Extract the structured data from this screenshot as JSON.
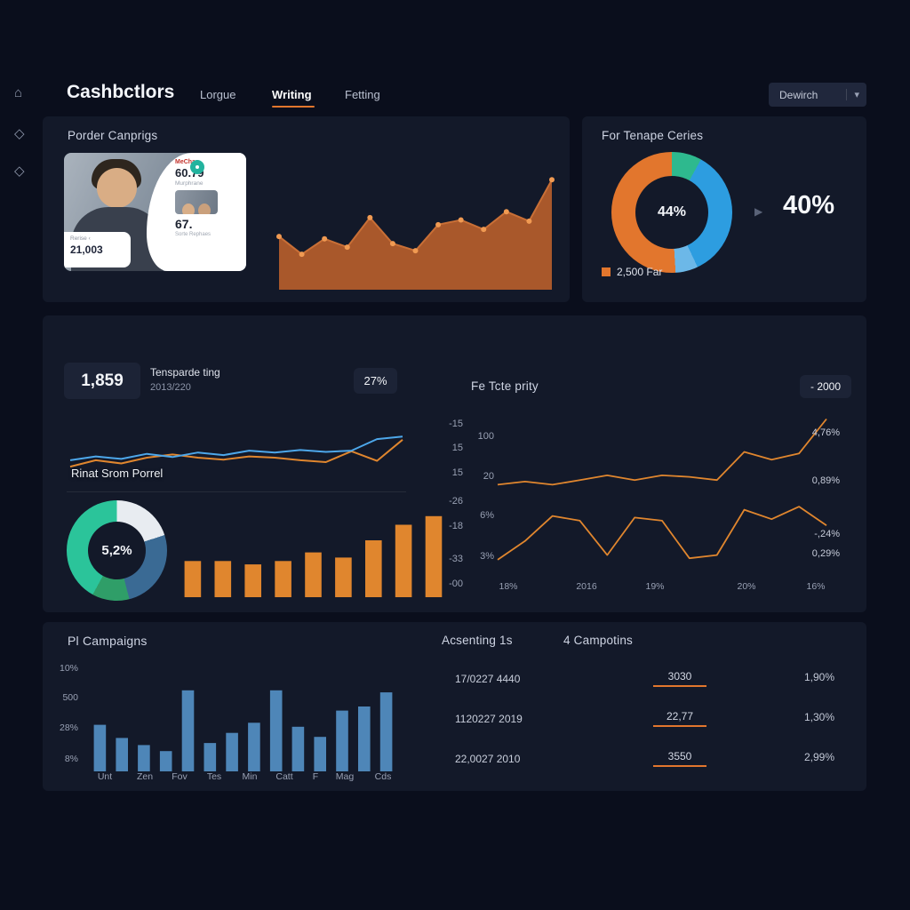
{
  "brand": "Cashbctlors",
  "nav": {
    "items": [
      {
        "label": "Lorgue",
        "active": false
      },
      {
        "label": "Writing",
        "active": true
      },
      {
        "label": "Fetting",
        "active": false
      }
    ],
    "dropdown_label": "Dewirch"
  },
  "cards": {
    "campaigns": {
      "title": "Porder Canprigs",
      "photo": {
        "logo": "MeChas",
        "value": "60.79",
        "sub": "Murphrane",
        "num": "67.",
        "caption": "Sorte Rephaes",
        "side_label": "Rerise ‹",
        "side_value": "21,003"
      }
    },
    "tenape": {
      "title": "For Tenape Ceries",
      "center_value": "44%",
      "big_value": "40%",
      "legend": "2,500 Far"
    },
    "mid": {
      "stat": "1,859",
      "stat_label1": "Tensparde ting",
      "stat_label2": "2013/220",
      "badge": "27%",
      "overlay_label": "Rinat Srom Porrel",
      "donut_center": "5,2%",
      "axis_labels": [
        "-15",
        "15",
        "15",
        "-26",
        "-18",
        "-33",
        "-00"
      ]
    },
    "right": {
      "title": "Fe Tcte prity",
      "badge": "- 2000",
      "y_labels": [
        "100",
        "20",
        "6%",
        "3%"
      ],
      "x_labels": [
        "18%",
        "2016",
        "19%",
        "20%",
        "16%"
      ],
      "side_values": [
        "4,76%",
        "0,89%",
        "-,24%",
        "0,29%"
      ]
    },
    "bottom": {
      "left_title": "Pl Campaigns",
      "y_labels": [
        "10%",
        "500",
        "28%",
        "8%"
      ],
      "x_labels": [
        "Unt",
        "Zen",
        "Fov",
        "Tes",
        "Min",
        "Catt",
        "F",
        "Mag",
        "Cds"
      ],
      "mid_title": "Acsenting 1s",
      "mid_rows": [
        "17/0227 4440",
        "1120227 2019",
        "22,0027 2010"
      ],
      "right_title": "4 Campotins",
      "camp_rows": [
        {
          "num": "3030",
          "pct": "1,90%"
        },
        {
          "num": "22,77",
          "pct": "1,30%"
        },
        {
          "num": "3550",
          "pct": "2,99%"
        }
      ]
    }
  },
  "chart_data": {
    "area": {
      "type": "area",
      "values": [
        42,
        27,
        40,
        33,
        58,
        36,
        30,
        52,
        56,
        48,
        63,
        55,
        90
      ],
      "fill": "#a9582b",
      "line": "#c96f36",
      "dot": "#f09a52"
    },
    "donut_tenape": {
      "type": "pie",
      "segments": [
        {
          "color": "#2eb98e",
          "value": 8
        },
        {
          "color": "#2d9de0",
          "value": 35
        },
        {
          "color": "#6cb8e8",
          "value": 6
        },
        {
          "color": "#e2762d",
          "value": 51
        }
      ]
    },
    "mid_lines": {
      "type": "line",
      "blue": [
        46,
        52,
        48,
        56,
        51,
        58,
        54,
        61,
        58,
        62,
        59,
        61,
        79,
        83
      ],
      "orange": [
        36,
        46,
        41,
        50,
        55,
        50,
        47,
        52,
        50,
        46,
        43,
        60,
        45,
        78
      ],
      "blue_color": "#4da7ea",
      "orange_color": "#e0862e"
    },
    "donut_small": {
      "type": "pie",
      "segments": [
        {
          "color": "#e8ecf1",
          "value": 20
        },
        {
          "color": "#3a6a94",
          "value": 26
        },
        {
          "color": "#2f9e68",
          "value": 12
        },
        {
          "color": "#2bc49a",
          "value": 42
        }
      ]
    },
    "mid_bars": {
      "type": "bar",
      "values": [
        42,
        42,
        38,
        42,
        52,
        46,
        66,
        84,
        94
      ],
      "color": "#e0862e"
    },
    "right_lines": {
      "type": "line",
      "top": [
        56,
        58,
        56,
        59,
        62,
        59,
        62,
        61,
        59,
        77,
        72,
        76,
        98
      ],
      "bottom": [
        8,
        20,
        36,
        33,
        11,
        35,
        33,
        9,
        11,
        40,
        34,
        42,
        30
      ],
      "color": "#e0862e"
    },
    "bottom_bars": {
      "type": "bar",
      "values": [
        46,
        33,
        26,
        20,
        80,
        28,
        38,
        48,
        80,
        44,
        34,
        60,
        64,
        78
      ],
      "color": "#4e86b8"
    }
  }
}
